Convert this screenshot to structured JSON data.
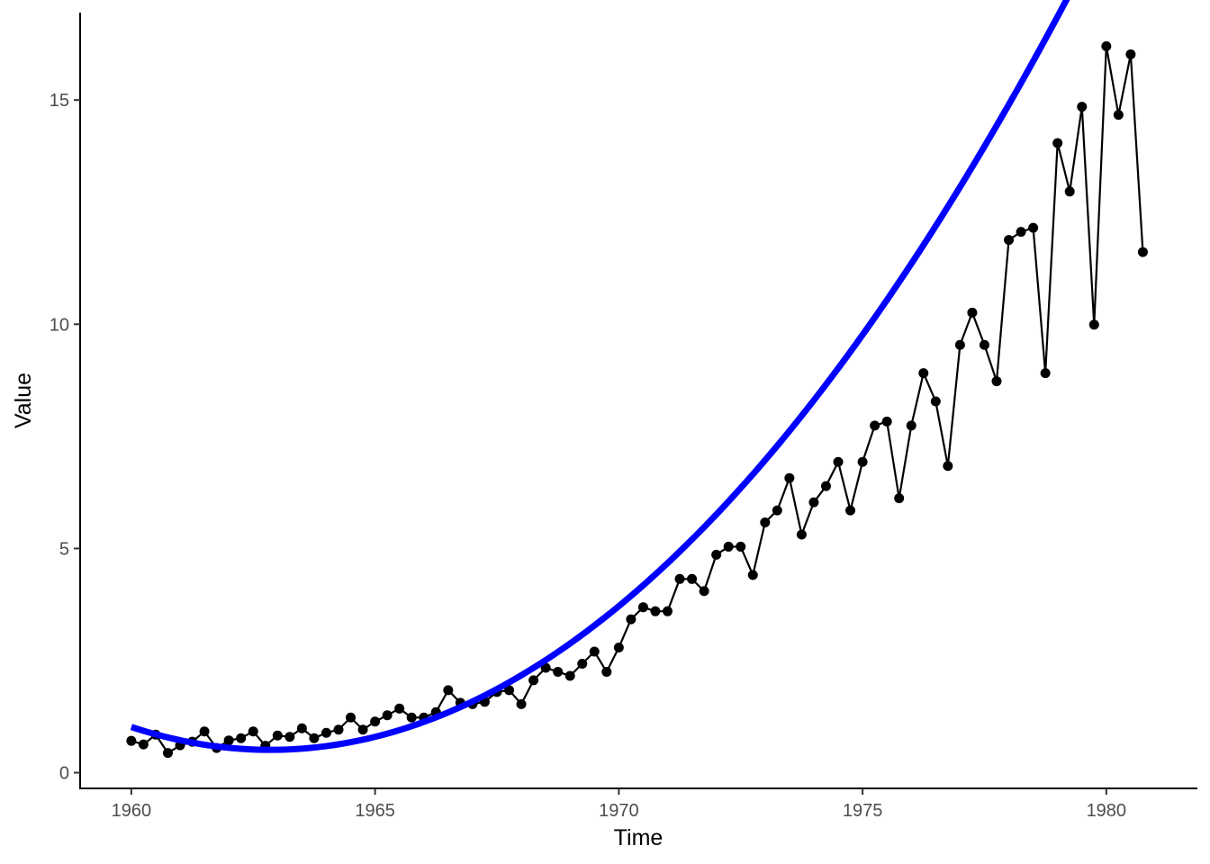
{
  "chart_data": {
    "type": "line",
    "title": "",
    "xlabel": "Time",
    "ylabel": "Value",
    "xlim": [
      1958.95,
      1981.85
    ],
    "ylim": [
      -0.35,
      16.95
    ],
    "xticks": [
      1960,
      1965,
      1970,
      1975,
      1980
    ],
    "yticks": [
      0,
      5,
      10,
      15
    ],
    "grid": false,
    "legend": "none",
    "colors": {
      "series": "#000000",
      "fit": "#0000ff",
      "axis": "#000000",
      "tick_label": "#4d4d4d"
    },
    "series": [
      {
        "style": "line+points",
        "x": [
          1960.0,
          1960.25,
          1960.5,
          1960.75,
          1961.0,
          1961.25,
          1961.5,
          1961.75,
          1962.0,
          1962.25,
          1962.5,
          1962.75,
          1963.0,
          1963.25,
          1963.5,
          1963.75,
          1964.0,
          1964.25,
          1964.5,
          1964.75,
          1965.0,
          1965.25,
          1965.5,
          1965.75,
          1966.0,
          1966.25,
          1966.5,
          1966.75,
          1967.0,
          1967.25,
          1967.5,
          1967.75,
          1968.0,
          1968.25,
          1968.5,
          1968.75,
          1969.0,
          1969.25,
          1969.5,
          1969.75,
          1970.0,
          1970.25,
          1970.5,
          1970.75,
          1971.0,
          1971.25,
          1971.5,
          1971.75,
          1972.0,
          1972.25,
          1972.5,
          1972.75,
          1973.0,
          1973.25,
          1973.5,
          1973.75,
          1974.0,
          1974.25,
          1974.5,
          1974.75,
          1975.0,
          1975.25,
          1975.5,
          1975.75,
          1976.0,
          1976.25,
          1976.5,
          1976.75,
          1977.0,
          1977.25,
          1977.5,
          1977.75,
          1978.0,
          1978.25,
          1978.5,
          1978.75,
          1979.0,
          1979.25,
          1979.5,
          1979.75,
          1980.0,
          1980.25,
          1980.5,
          1980.75
        ],
        "y": [
          0.71,
          0.63,
          0.85,
          0.44,
          0.61,
          0.69,
          0.92,
          0.55,
          0.72,
          0.77,
          0.92,
          0.6,
          0.83,
          0.8,
          0.99,
          0.77,
          0.89,
          0.96,
          1.23,
          0.96,
          1.14,
          1.28,
          1.43,
          1.23,
          1.23,
          1.35,
          1.84,
          1.56,
          1.53,
          1.58,
          1.8,
          1.84,
          1.53,
          2.06,
          2.34,
          2.25,
          2.16,
          2.43,
          2.7,
          2.25,
          2.79,
          3.42,
          3.69,
          3.6,
          3.6,
          4.32,
          4.32,
          4.05,
          4.86,
          5.04,
          5.04,
          4.41,
          5.58,
          5.85,
          6.57,
          5.31,
          6.03,
          6.39,
          6.93,
          5.85,
          6.93,
          7.74,
          7.83,
          6.12,
          7.74,
          8.91,
          8.28,
          6.84,
          9.54,
          10.26,
          9.54,
          8.73,
          11.88,
          12.06,
          12.15,
          8.91,
          14.04,
          12.96,
          14.85,
          9.99,
          16.2,
          14.67,
          16.02,
          11.61
        ]
      },
      {
        "style": "fit",
        "degree": 2,
        "x_range": [
          1960.0,
          1980.75
        ],
        "coefficients": {
          "a": 0.0627,
          "b": -0.3575,
          "c": 1.0195,
          "x0": 1960.0
        }
      }
    ]
  }
}
